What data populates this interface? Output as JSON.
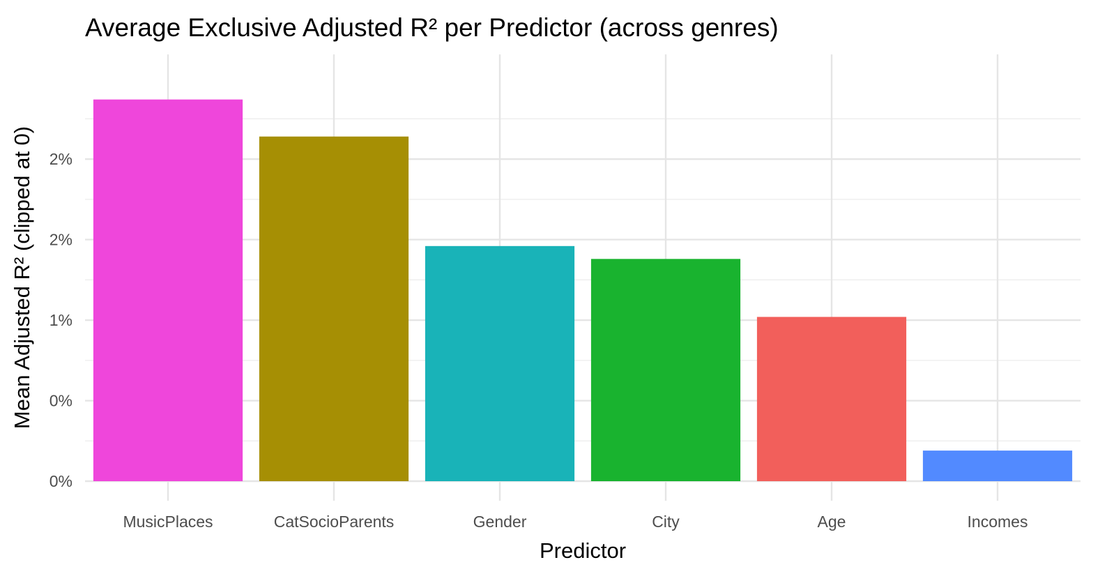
{
  "chart_data": {
    "type": "bar",
    "title": "Average Exclusive Adjusted R² per Predictor (across genres)",
    "xlabel": "Predictor",
    "ylabel": "Mean Adjusted R² (clipped at 0)",
    "categories": [
      "MusicPlaces",
      "CatSocioParents",
      "Gender",
      "City",
      "Age",
      "Incomes"
    ],
    "values": [
      0.0237,
      0.0214,
      0.0146,
      0.0138,
      0.0102,
      0.0019
    ],
    "colors": [
      "#EF46DB",
      "#A68F04",
      "#19B3B8",
      "#19B32F",
      "#F25F5B",
      "#528AFF"
    ],
    "ylim": [
      0,
      0.0265
    ],
    "y_ticks": [
      {
        "value": 0.0,
        "label": "0%"
      },
      {
        "value": 0.005,
        "label": "0%"
      },
      {
        "value": 0.01,
        "label": "1%"
      },
      {
        "value": 0.015,
        "label": "2%"
      },
      {
        "value": 0.02,
        "label": "2%"
      }
    ],
    "grid": true,
    "legend": "none"
  }
}
